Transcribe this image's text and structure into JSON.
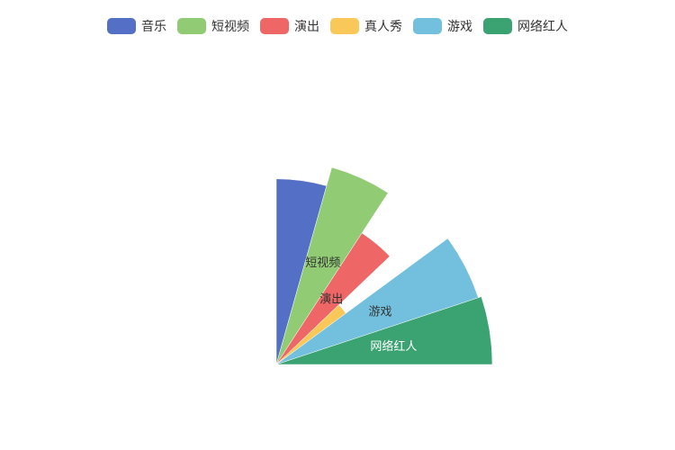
{
  "chart_data": {
    "type": "pie",
    "variant": "rose-quarter",
    "title": "",
    "legend_position": "top-center",
    "slices": [
      {
        "name": "音乐",
        "value": 232,
        "color": "#5470c6",
        "show_label": false,
        "label_color": "#333333"
      },
      {
        "name": "短视频",
        "value": 256,
        "color": "#91cc75",
        "show_label": true,
        "label_color": "#333333"
      },
      {
        "name": "演出",
        "value": 196,
        "color": "#ee6666",
        "show_label": true,
        "label_color": "#333333"
      },
      {
        "name": "真人秀",
        "value": 108,
        "color": "#fac858",
        "show_label": false,
        "label_color": "#333333"
      },
      {
        "name": "游戏",
        "value": 266,
        "color": "#73c0de",
        "show_label": true,
        "label_color": "#333333"
      },
      {
        "name": "网络红人",
        "value": 270,
        "color": "#3ba272",
        "show_label": true,
        "label_color": "#ffffff"
      }
    ]
  }
}
